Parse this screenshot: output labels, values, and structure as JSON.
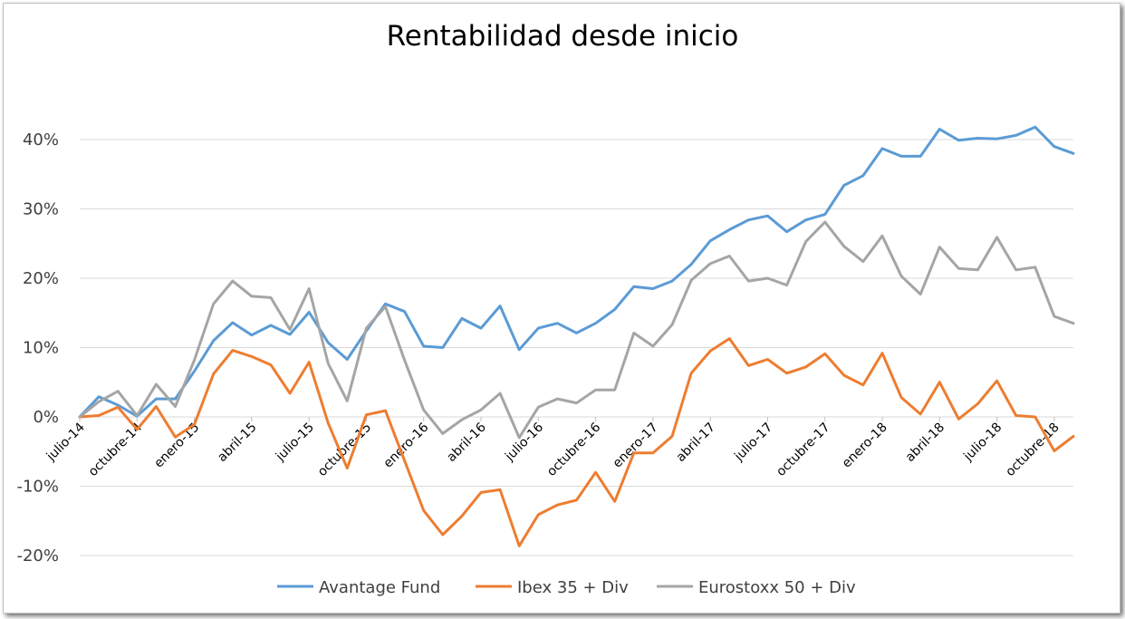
{
  "chart_data": {
    "type": "line",
    "title": "Rentabilidad desde inicio",
    "xlabel": "",
    "ylabel": "",
    "ylim": [
      -0.2,
      0.4
    ],
    "y_ticks": [
      0.4,
      0.3,
      0.2,
      0.1,
      0.0,
      -0.1,
      -0.2
    ],
    "y_tick_labels": [
      "40%",
      "30%",
      "20%",
      "10%",
      "0%",
      "-10%",
      "-20%"
    ],
    "x_tick_labels": [
      "julio-14",
      "octubre-14",
      "enero-15",
      "abril-15",
      "julio-15",
      "octubre-15",
      "enero-16",
      "abril-16",
      "julio-16",
      "octubre-16",
      "enero-17",
      "abril-17",
      "julio-17",
      "octubre-17",
      "enero-18",
      "abril-18",
      "julio-18",
      "octubre-18"
    ],
    "grid": true,
    "legend_position": "bottom",
    "series": [
      {
        "name": "Avantage Fund",
        "color": "#5b9bd5",
        "values": [
          0.0,
          0.029,
          0.017,
          0.001,
          0.026,
          0.026,
          0.066,
          0.11,
          0.136,
          0.118,
          0.132,
          0.119,
          0.151,
          0.107,
          0.083,
          0.124,
          0.163,
          0.152,
          0.102,
          0.1,
          0.142,
          0.128,
          0.16,
          0.097,
          0.128,
          0.135,
          0.121,
          0.135,
          0.155,
          0.188,
          0.185,
          0.196,
          0.22,
          0.254,
          0.27,
          0.284,
          0.29,
          0.267,
          0.284,
          0.292,
          0.334,
          0.348,
          0.387,
          0.376,
          0.376,
          0.415,
          0.399,
          0.402,
          0.401,
          0.406,
          0.418,
          0.39,
          0.38
        ]
      },
      {
        "name": "Ibex 35 + Div",
        "color": "#ed7d31",
        "values": [
          0.0,
          0.002,
          0.014,
          -0.018,
          0.015,
          -0.029,
          -0.011,
          0.062,
          0.096,
          0.087,
          0.075,
          0.034,
          0.079,
          -0.009,
          -0.074,
          0.003,
          0.009,
          -0.063,
          -0.135,
          -0.17,
          -0.143,
          -0.109,
          -0.105,
          -0.186,
          -0.141,
          -0.127,
          -0.12,
          -0.08,
          -0.122,
          -0.052,
          -0.052,
          -0.028,
          0.063,
          0.095,
          0.113,
          0.074,
          0.083,
          0.063,
          0.072,
          0.091,
          0.06,
          0.046,
          0.092,
          0.028,
          0.004,
          0.05,
          -0.003,
          0.019,
          0.052,
          0.002,
          0.0,
          -0.049,
          -0.028
        ]
      },
      {
        "name": "Eurostoxx 50 + Div",
        "color": "#a5a5a5",
        "values": [
          0.0,
          0.022,
          0.037,
          0.002,
          0.047,
          0.015,
          0.082,
          0.163,
          0.196,
          0.174,
          0.172,
          0.126,
          0.185,
          0.077,
          0.023,
          0.128,
          0.159,
          0.082,
          0.01,
          -0.024,
          -0.004,
          0.01,
          0.034,
          -0.03,
          0.014,
          0.026,
          0.02,
          0.039,
          0.039,
          0.121,
          0.102,
          0.133,
          0.197,
          0.221,
          0.232,
          0.196,
          0.2,
          0.19,
          0.253,
          0.281,
          0.246,
          0.224,
          0.261,
          0.203,
          0.177,
          0.245,
          0.214,
          0.212,
          0.259,
          0.212,
          0.216,
          0.145,
          0.135
        ]
      }
    ]
  }
}
